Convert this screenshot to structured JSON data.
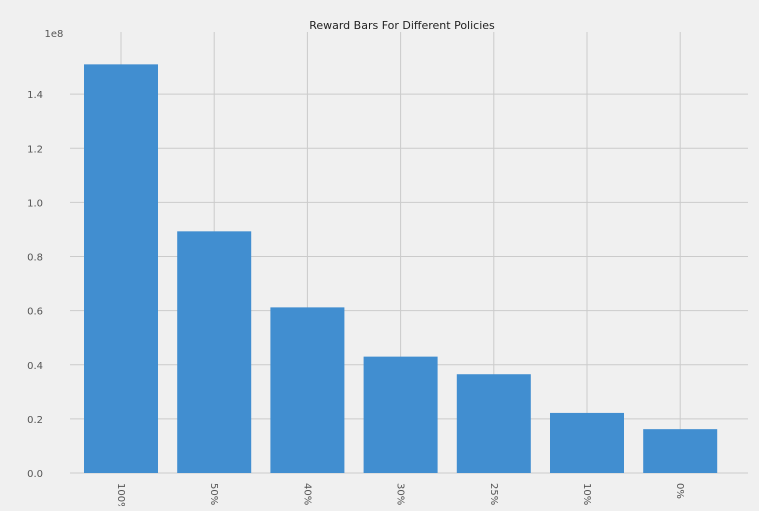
{
  "chart_data": {
    "type": "bar",
    "title": "Reward Bars For Different Policies",
    "xlabel": "",
    "ylabel": "",
    "y_multiplier_label": "1e8",
    "categories": [
      "100%",
      "50%",
      "40%",
      "30%",
      "25%",
      "10%",
      "0%"
    ],
    "values": [
      1.51,
      0.893,
      0.612,
      0.43,
      0.365,
      0.222,
      0.162
    ],
    "ylim": [
      0,
      1.6
    ],
    "yticks": [
      0.0,
      0.2,
      0.4,
      0.6,
      0.8,
      1.0,
      1.2,
      1.4
    ],
    "ytick_labels": [
      "0.0",
      "0.2",
      "0.4",
      "0.6",
      "0.8",
      "1.0",
      "1.2",
      "1.4"
    ],
    "grid": true,
    "bar_color": "#418ed0",
    "background_color": "#f0f0f0",
    "grid_color": "#cbcbcb",
    "xtick_rotation": "vertical"
  }
}
